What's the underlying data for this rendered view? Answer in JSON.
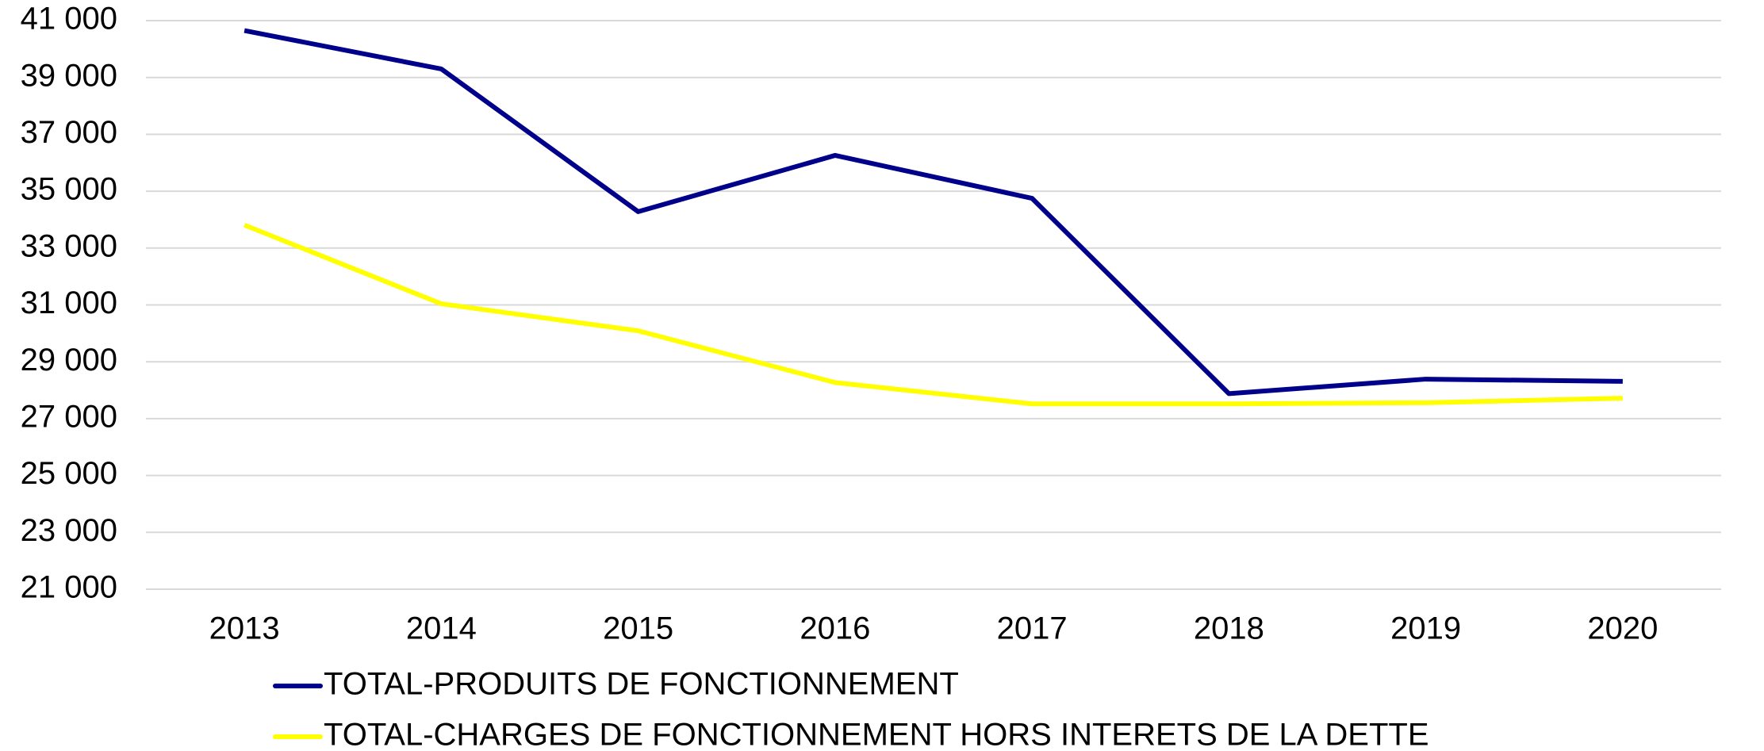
{
  "chart_data": {
    "type": "line",
    "categories": [
      "2013",
      "2014",
      "2015",
      "2016",
      "2017",
      "2018",
      "2019",
      "2020"
    ],
    "series": [
      {
        "name": "TOTAL-PRODUITS DE FONCTIONNEMENT",
        "color": "#00008b",
        "values": [
          40650,
          39300,
          34280,
          36260,
          34750,
          27880,
          28390,
          28310
        ]
      },
      {
        "name": "TOTAL-CHARGES DE FONCTIONNEMENT HORS INTERETS DE LA DETTE",
        "color": "#ffff00",
        "values": [
          33810,
          31040,
          30090,
          28270,
          27520,
          27520,
          27560,
          27720
        ]
      }
    ],
    "ylim": [
      21000,
      41000
    ],
    "yticks": [
      {
        "value": 21000,
        "label": "21 000"
      },
      {
        "value": 23000,
        "label": "23 000"
      },
      {
        "value": 25000,
        "label": "25 000"
      },
      {
        "value": 27000,
        "label": "27 000"
      },
      {
        "value": 29000,
        "label": "29 000"
      },
      {
        "value": 31000,
        "label": "31 000"
      },
      {
        "value": 33000,
        "label": "33 000"
      },
      {
        "value": 35000,
        "label": "35 000"
      },
      {
        "value": 37000,
        "label": "37 000"
      },
      {
        "value": 39000,
        "label": "39 000"
      },
      {
        "value": 41000,
        "label": "41 000"
      }
    ],
    "grid": true,
    "legend": "bottom"
  }
}
